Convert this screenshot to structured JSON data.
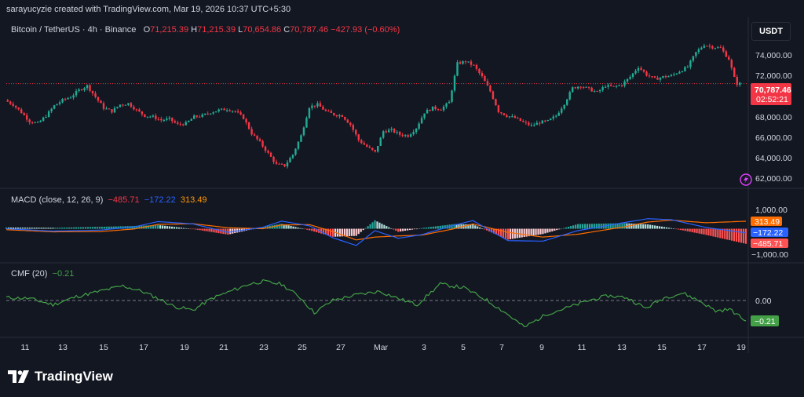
{
  "watermark_header": "sarayucyzie created with TradingView.com, Mar 19, 2026 10:37 UTC+5:30",
  "symbol": {
    "name": "Bitcoin / TetherUS · 4h · Binance",
    "open_label": "O",
    "open": "71,215.39",
    "high_label": "H",
    "high": "71,215.39",
    "low_label": "L",
    "low": "70,654.86",
    "close_label": "C",
    "close": "70,787.46",
    "change": "−427.93 (−0.60%)"
  },
  "currency_button": "USDT",
  "price_axis": {
    "ticks": [
      "74,000.00",
      "72,000.00",
      "68,000.00",
      "66,000.00",
      "64,000.00",
      "62,000.00"
    ],
    "last_price_label": "70,787.46",
    "countdown_label": "02:52:21"
  },
  "macd": {
    "title": "MACD (close, 12, 26, 9)",
    "histogram_value": "−485.71",
    "macd_value": "−172.22",
    "signal_value": "313.49",
    "axis_ticks": [
      "1,000.00",
      "−1,000.00"
    ]
  },
  "cmf": {
    "title": "CMF (20)",
    "value": "−0.21",
    "axis_ticks": [
      "0.00"
    ],
    "last_label": "−0.21"
  },
  "time_axis": [
    "11",
    "13",
    "15",
    "17",
    "19",
    "21",
    "23",
    "25",
    "27",
    "Mar",
    "3",
    "5",
    "7",
    "9",
    "11",
    "13",
    "15",
    "17",
    "19"
  ],
  "brand": "TradingView",
  "colors": {
    "up": "#22ab94",
    "down": "#f23645",
    "macd_line": "#2962ff",
    "signal_line": "#ff6d00",
    "cmf_line": "#43a047",
    "hist_up_strong": "#26a69a",
    "hist_up_weak": "#b2dfdb",
    "hist_down_strong": "#ff5252",
    "hist_down_weak": "#ffcdd2"
  },
  "chart_data": [
    {
      "type": "candlestick",
      "title": "Bitcoin / TetherUS · 4h · Binance",
      "ylim": [
        61500,
        75500
      ],
      "x_labels": [
        "11",
        "13",
        "15",
        "17",
        "19",
        "21",
        "23",
        "25",
        "27",
        "Mar",
        "3",
        "5",
        "7",
        "9",
        "11",
        "13",
        "15",
        "17",
        "19"
      ],
      "close_path": [
        [
          0,
          69300
        ],
        [
          3,
          68900
        ],
        [
          6,
          68200
        ],
        [
          9,
          67400
        ],
        [
          12,
          67200
        ],
        [
          15,
          67900
        ],
        [
          18,
          68800
        ],
        [
          21,
          69300
        ],
        [
          24,
          69600
        ],
        [
          27,
          70200
        ],
        [
          30,
          70600
        ],
        [
          33,
          69600
        ],
        [
          36,
          68600
        ],
        [
          39,
          68300
        ],
        [
          42,
          68900
        ],
        [
          45,
          69000
        ],
        [
          48,
          68400
        ],
        [
          51,
          67900
        ],
        [
          54,
          67800
        ],
        [
          57,
          67500
        ],
        [
          60,
          67600
        ],
        [
          63,
          67100
        ],
        [
          66,
          67200
        ],
        [
          69,
          67800
        ],
        [
          72,
          67900
        ],
        [
          75,
          68200
        ],
        [
          78,
          68400
        ],
        [
          81,
          68500
        ],
        [
          84,
          68300
        ],
        [
          87,
          67700
        ],
        [
          90,
          66300
        ],
        [
          93,
          65500
        ],
        [
          96,
          64500
        ],
        [
          99,
          63500
        ],
        [
          102,
          63400
        ],
        [
          105,
          64400
        ],
        [
          108,
          66100
        ],
        [
          111,
          68700
        ],
        [
          114,
          68900
        ],
        [
          117,
          68300
        ],
        [
          120,
          68000
        ],
        [
          123,
          67900
        ],
        [
          126,
          67100
        ],
        [
          129,
          65700
        ],
        [
          132,
          65100
        ],
        [
          135,
          64600
        ],
        [
          138,
          66500
        ],
        [
          141,
          66600
        ],
        [
          144,
          66200
        ],
        [
          147,
          66100
        ],
        [
          150,
          66800
        ],
        [
          153,
          68200
        ],
        [
          156,
          68600
        ],
        [
          159,
          68500
        ],
        [
          162,
          69100
        ],
        [
          165,
          72600
        ],
        [
          168,
          72800
        ],
        [
          171,
          72400
        ],
        [
          174,
          71400
        ],
        [
          177,
          70100
        ],
        [
          180,
          68300
        ],
        [
          183,
          67900
        ],
        [
          186,
          67700
        ],
        [
          189,
          67300
        ],
        [
          192,
          67000
        ],
        [
          195,
          67300
        ],
        [
          198,
          67400
        ],
        [
          201,
          67900
        ],
        [
          204,
          69000
        ],
        [
          207,
          70400
        ],
        [
          210,
          70600
        ],
        [
          213,
          70300
        ],
        [
          216,
          70000
        ],
        [
          219,
          70600
        ],
        [
          222,
          70500
        ],
        [
          225,
          70700
        ],
        [
          228,
          71400
        ],
        [
          231,
          72300
        ],
        [
          234,
          71600
        ],
        [
          237,
          71200
        ],
        [
          240,
          71400
        ],
        [
          243,
          71500
        ],
        [
          246,
          71900
        ],
        [
          249,
          72300
        ],
        [
          252,
          73600
        ],
        [
          255,
          74300
        ],
        [
          258,
          74100
        ],
        [
          261,
          74000
        ],
        [
          264,
          73000
        ],
        [
          266,
          71300
        ],
        [
          267,
          70787
        ]
      ]
    },
    {
      "type": "line",
      "title": "MACD (close, 12, 26, 9)",
      "ylim": [
        -1100,
        1200
      ],
      "series": [
        {
          "name": "MACD",
          "points": [
            [
              0,
              0
            ],
            [
              20,
              -100
            ],
            [
              40,
              -60
            ],
            [
              55,
              80
            ],
            [
              65,
              300
            ],
            [
              80,
              200
            ],
            [
              95,
              -150
            ],
            [
              110,
              60
            ],
            [
              118,
              320
            ],
            [
              130,
              120
            ],
            [
              140,
              -380
            ],
            [
              150,
              -700
            ],
            [
              158,
              -80
            ],
            [
              168,
              -400
            ],
            [
              178,
              -250
            ],
            [
              192,
              150
            ],
            [
              200,
              340
            ],
            [
              215,
              -500
            ],
            [
              230,
              -520
            ],
            [
              245,
              -80
            ],
            [
              265,
              260
            ],
            [
              275,
              420
            ],
            [
              285,
              380
            ],
            [
              300,
              50
            ],
            [
              317,
              -172.22
            ]
          ]
        },
        {
          "name": "Signal",
          "points": [
            [
              0,
              -40
            ],
            [
              20,
              -130
            ],
            [
              40,
              -120
            ],
            [
              55,
              -10
            ],
            [
              65,
              180
            ],
            [
              80,
              210
            ],
            [
              95,
              40
            ],
            [
              110,
              0
            ],
            [
              118,
              160
            ],
            [
              130,
              170
            ],
            [
              140,
              -120
            ],
            [
              150,
              -470
            ],
            [
              158,
              -350
            ],
            [
              168,
              -300
            ],
            [
              178,
              -270
            ],
            [
              192,
              0
            ],
            [
              200,
              200
            ],
            [
              215,
              -150
            ],
            [
              230,
              -350
            ],
            [
              245,
              -230
            ],
            [
              265,
              80
            ],
            [
              275,
              280
            ],
            [
              285,
              360
            ],
            [
              300,
              250
            ],
            [
              317,
              313.49
            ]
          ]
        }
      ]
    },
    {
      "type": "line",
      "title": "CMF (20)",
      "ylim": [
        -0.35,
        0.35
      ],
      "series": [
        {
          "name": "CMF",
          "points": [
            [
              0,
              0.05
            ],
            [
              10,
              0.04
            ],
            [
              20,
              -0.03
            ],
            [
              30,
              0.06
            ],
            [
              40,
              0.12
            ],
            [
              50,
              0.18
            ],
            [
              58,
              0.12
            ],
            [
              66,
              0.03
            ],
            [
              72,
              -0.05
            ],
            [
              80,
              -0.09
            ],
            [
              88,
              0.04
            ],
            [
              96,
              0.12
            ],
            [
              104,
              0.2
            ],
            [
              110,
              0.23
            ],
            [
              118,
              0.2
            ],
            [
              126,
              0.05
            ],
            [
              132,
              -0.12
            ],
            [
              140,
              0.02
            ],
            [
              150,
              0.08
            ],
            [
              160,
              0.12
            ],
            [
              168,
              0.04
            ],
            [
              176,
              -0.03
            ],
            [
              186,
              0.2
            ],
            [
              196,
              0.16
            ],
            [
              206,
              0.02
            ],
            [
              214,
              -0.12
            ],
            [
              222,
              -0.28
            ],
            [
              232,
              -0.13
            ],
            [
              242,
              -0.05
            ],
            [
              250,
              0.02
            ],
            [
              258,
              0.07
            ],
            [
              266,
              0.05
            ],
            [
              274,
              -0.07
            ],
            [
              282,
              0.05
            ],
            [
              290,
              0.1
            ],
            [
              298,
              0.0
            ],
            [
              304,
              -0.1
            ],
            [
              310,
              -0.08
            ],
            [
              317,
              -0.21
            ]
          ]
        }
      ]
    }
  ]
}
